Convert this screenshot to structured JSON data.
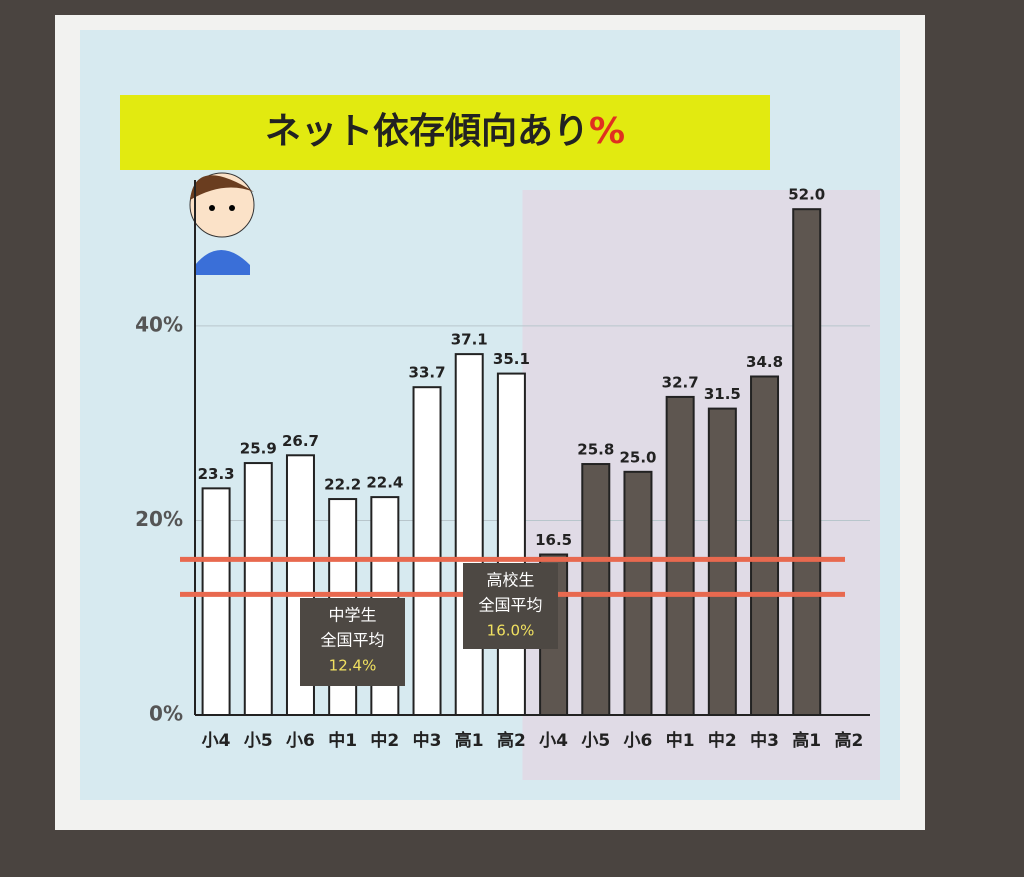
{
  "chart_data": {
    "type": "bar",
    "title": "ネット依存傾向あり",
    "title_unit": "%",
    "categories": [
      "小4",
      "小5",
      "小6",
      "中1",
      "中2",
      "中3",
      "高1",
      "高2"
    ],
    "series": [
      {
        "color": "#ffffff",
        "values": [
          23.3,
          25.9,
          26.7,
          22.2,
          22.4,
          33.7,
          37.1,
          35.1
        ]
      },
      {
        "color": "#5e5650",
        "values": [
          16.5,
          25.8,
          25.0,
          32.7,
          31.5,
          34.8,
          52.0,
          null
        ],
        "value_labels": [
          "16.5",
          "25.8",
          "25.0",
          "32.7",
          "31.5",
          "34.8",
          "52.0",
          null
        ]
      }
    ],
    "ylim": [
      0,
      55
    ],
    "yticks": [
      {
        "value": 0,
        "label": "0%"
      },
      {
        "value": 20,
        "label": "20%"
      },
      {
        "value": 40,
        "label": "40%"
      }
    ],
    "grid": true,
    "reference_lines": [
      {
        "lines": [
          "中学生",
          "全国平均"
        ],
        "value": 12.4,
        "value_label": "12.4%",
        "color": "#e8694f"
      },
      {
        "lines": [
          "高校生",
          "全国平均"
        ],
        "value": 16.0,
        "value_label": "16.0%",
        "color": "#e8694f"
      }
    ]
  }
}
